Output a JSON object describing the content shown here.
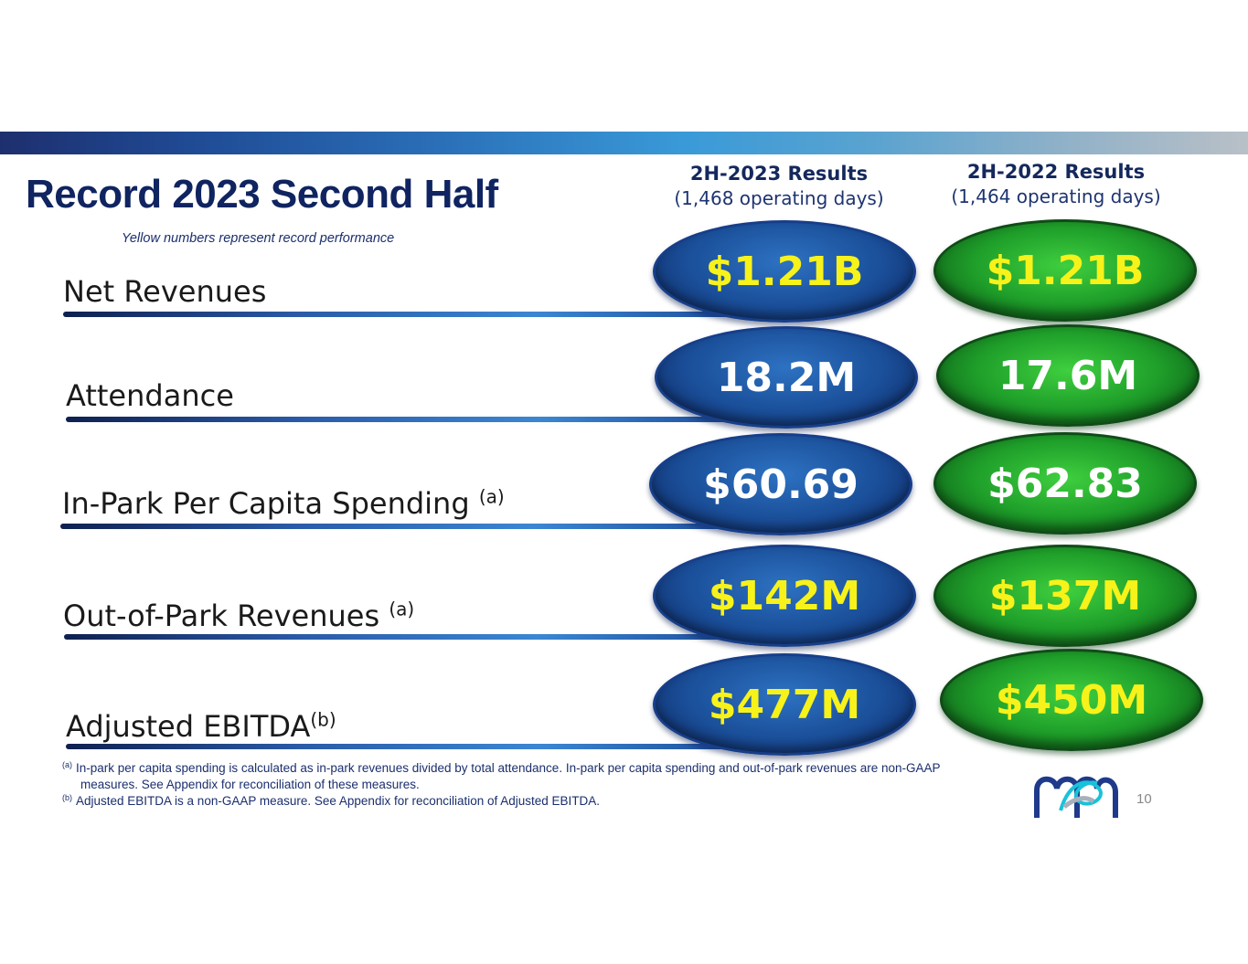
{
  "header": {
    "title": "Record 2023 Second Half",
    "subtitle": "Yellow numbers represent record performance"
  },
  "columns": [
    {
      "heading": "2H-2023 Results",
      "days": "(1,468 operating days)"
    },
    {
      "heading": "2H-2022 Results",
      "days": "(1,464 operating days)"
    }
  ],
  "rows": [
    {
      "label": "Net Revenues",
      "note": "",
      "values": [
        "$1.21B",
        "$1.21B"
      ],
      "record": [
        true,
        true
      ]
    },
    {
      "label": "Attendance",
      "note": "",
      "values": [
        "18.2M",
        "17.6M"
      ],
      "record": [
        false,
        false
      ]
    },
    {
      "label": "In-Park Per Capita Spending",
      "note": "(a)",
      "values": [
        "$60.69",
        "$62.83"
      ],
      "record": [
        false,
        false
      ]
    },
    {
      "label": "Out-of-Park Revenues",
      "note": "(a)",
      "values": [
        "$142M",
        "$137M"
      ],
      "record": [
        true,
        true
      ]
    },
    {
      "label": "Adjusted EBITDA",
      "note": "(b)",
      "values": [
        "$477M",
        "$450M"
      ],
      "record": [
        true,
        true
      ]
    }
  ],
  "footnotes": [
    {
      "mark": "(a)",
      "text": "In-park per capita spending is calculated as in-park revenues divided by total attendance.  In-park per capita spending and out-of-park revenues are non-GAAP",
      "cont": "measures.  See Appendix for reconciliation of these measures."
    },
    {
      "mark": "(b)",
      "text": "Adjusted EBITDA is a non-GAAP measure. See Appendix for reconciliation of Adjusted EBITDA."
    }
  ],
  "page_number": "10",
  "logo": "company-logo-icon",
  "colors": {
    "record_yellow": "#f7f21a",
    "title_navy": "#0f2460",
    "current_oval_blue": "#1a4e98",
    "prior_oval_green": "#1f9f2a"
  }
}
